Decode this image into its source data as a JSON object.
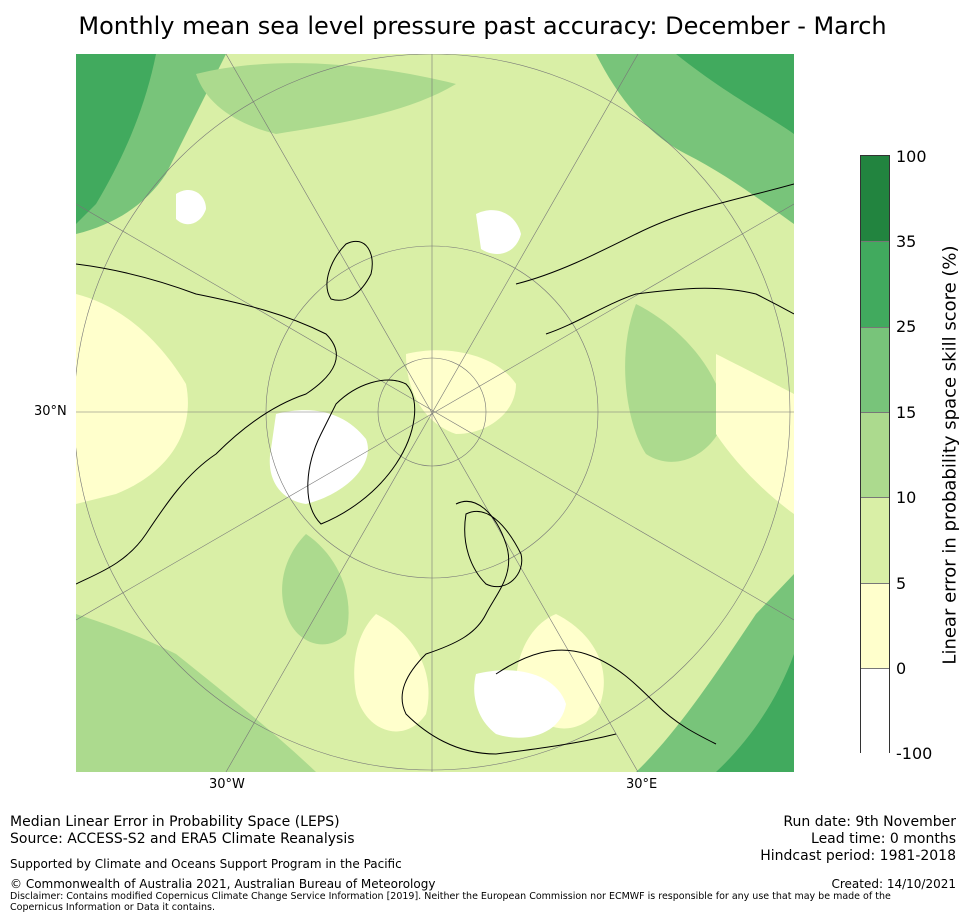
{
  "title": "Monthly mean sea level pressure past accuracy: December - March",
  "map": {
    "projection": "north-polar-stereographic",
    "lat_labels": [
      "30°N"
    ],
    "lon_labels": [
      "30°W",
      "30°E"
    ]
  },
  "colorbar": {
    "label": "Linear error in probability space skill score (%)",
    "ticks": [
      "100",
      "35",
      "25",
      "15",
      "10",
      "5",
      "0",
      "-100"
    ],
    "bins": [
      {
        "range": "35 to 100",
        "color": "#22843f"
      },
      {
        "range": "25 to 35",
        "color": "#41aa5e"
      },
      {
        "range": "15 to 25",
        "color": "#78c47a"
      },
      {
        "range": "10 to 15",
        "color": "#acda8e"
      },
      {
        "range": "5 to 10",
        "color": "#d9efa6"
      },
      {
        "range": "0 to 5",
        "color": "#ffffcc"
      },
      {
        "range": "-100 to 0",
        "color": "#ffffff"
      }
    ]
  },
  "footer": {
    "left_line1": "Median Linear Error in Probability Space (LEPS)",
    "left_line2": "Source: ACCESS-S2 and ERA5 Climate Reanalysis",
    "support": "Supported by Climate and Oceans Support Program in the Pacific",
    "copyright": "© Commonwealth of Australia 2021, Australian Bureau of Meteorology",
    "disclaimer": "Disclaimer: Contains modified Copernicus Climate Change Service Information [2019]. Neither the European Commission nor ECMWF is responsible for any use that may be made of the Copernicus Information or Data it contains.",
    "run_date": "Run date: 9th November",
    "lead_time": "Lead time: 0 months",
    "hindcast": "Hindcast period: 1981-2018",
    "created": "Created: 14/10/2021"
  }
}
